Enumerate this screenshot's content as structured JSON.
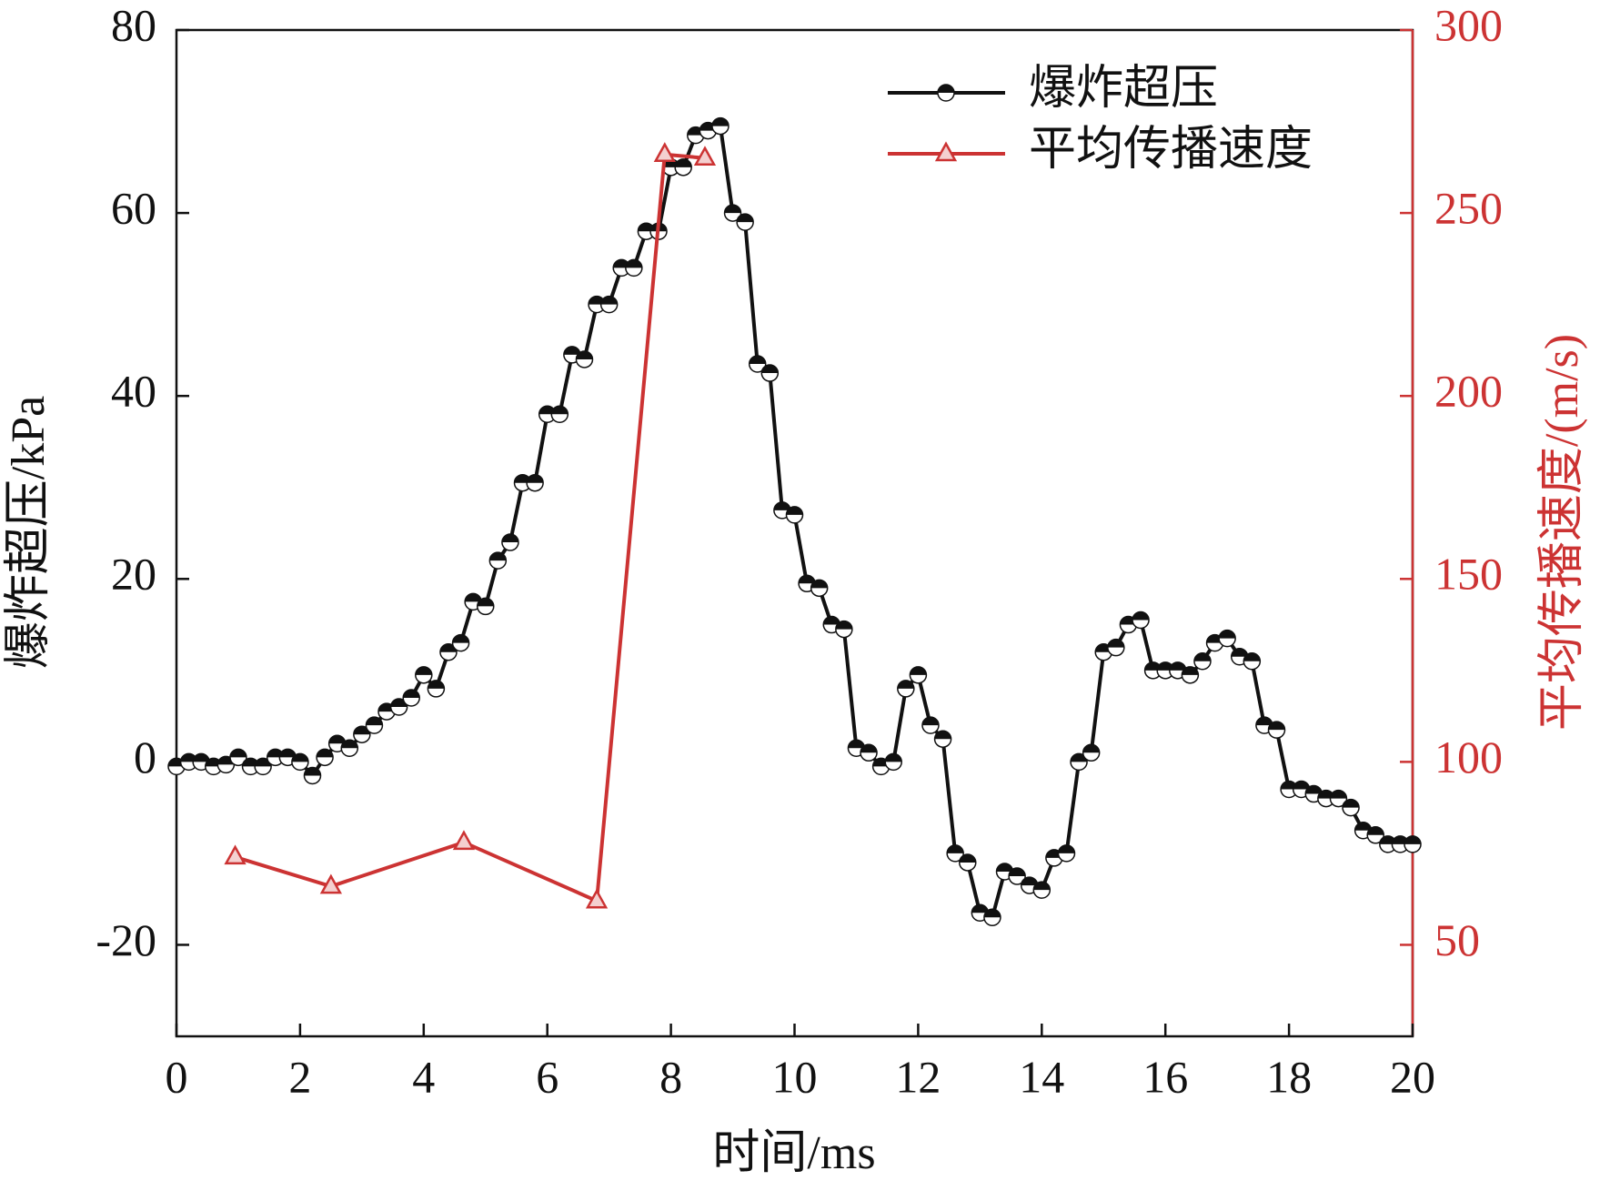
{
  "chart_data": {
    "type": "line",
    "xlabel": "时间/ms",
    "ylabel": "爆炸超压/kPa",
    "y2label": "平均传播速度/(m/s)",
    "xlim": [
      0,
      20
    ],
    "xticks": [
      0,
      2,
      4,
      6,
      8,
      10,
      12,
      14,
      16,
      18,
      20
    ],
    "ylim": [
      -30,
      80
    ],
    "yticks": [
      -20,
      0,
      20,
      40,
      60,
      80
    ],
    "y2lim": [
      25,
      300
    ],
    "y2ticks": [
      50,
      100,
      150,
      200,
      250,
      300
    ],
    "legend": "upper right",
    "series": [
      {
        "name": "爆炸超压",
        "color": "#111111",
        "marker": "circle",
        "x": [
          0,
          0.2,
          0.4,
          0.6,
          0.8,
          1.0,
          1.2,
          1.4,
          1.6,
          1.8,
          2.0,
          2.2,
          2.4,
          2.6,
          2.8,
          3.0,
          3.2,
          3.4,
          3.6,
          3.8,
          4.0,
          4.2,
          4.4,
          4.6,
          4.8,
          5.0,
          5.2,
          5.4,
          5.6,
          5.8,
          6.0,
          6.2,
          6.4,
          6.6,
          6.8,
          7.0,
          7.2,
          7.4,
          7.6,
          7.8,
          8.0,
          8.2,
          8.4,
          8.6,
          8.8,
          9.0,
          9.2,
          9.4,
          9.6,
          9.8,
          10.0,
          10.2,
          10.4,
          10.6,
          10.8,
          11.0,
          11.2,
          11.4,
          11.6,
          11.8,
          12.0,
          12.2,
          12.4,
          12.6,
          12.8,
          13.0,
          13.2,
          13.4,
          13.6,
          13.8,
          14.0,
          14.2,
          14.4,
          14.6,
          14.8,
          15.0,
          15.2,
          15.4,
          15.6,
          15.8,
          16.0,
          16.2,
          16.4,
          16.6,
          16.8,
          17.0,
          17.2,
          17.4,
          17.6,
          17.8,
          18.0,
          18.2,
          18.4,
          18.6,
          18.8,
          19.0,
          19.2,
          19.4,
          19.6,
          19.8,
          20.0
        ],
        "values": [
          -0.5,
          0,
          0,
          -0.5,
          -0.3,
          0.5,
          -0.5,
          -0.5,
          0.5,
          0.5,
          0,
          -1.5,
          0.5,
          2,
          1.5,
          3,
          4,
          5.5,
          6,
          7,
          9.5,
          8,
          12,
          13,
          17.5,
          17,
          22,
          24,
          30.5,
          30.5,
          38,
          38,
          44.5,
          44,
          50,
          50,
          54,
          54,
          58,
          58,
          65,
          65,
          68.5,
          69,
          69.5,
          60,
          59,
          43.5,
          42.5,
          27.5,
          27,
          19.5,
          19,
          15,
          14.5,
          1.5,
          1,
          -0.5,
          0,
          8,
          9.5,
          4,
          2.5,
          -10,
          -11,
          -16.5,
          -17,
          -12,
          -12.5,
          -13.5,
          -14,
          -10.5,
          -10,
          0,
          1,
          12,
          12.5,
          15,
          15.5,
          10,
          10,
          10,
          9.5,
          11,
          13,
          13.5,
          11.5,
          11,
          4,
          3.5,
          -3,
          -3,
          -3.5,
          -4,
          -4,
          -5,
          -7.5,
          -8,
          -9,
          -9,
          -9
        ]
      },
      {
        "name": "平均传播速度",
        "color": "#cc3333",
        "marker": "triangle",
        "axis": "y2",
        "x": [
          0.95,
          2.5,
          4.65,
          6.8,
          7.9,
          8.55
        ],
        "values": [
          74,
          66,
          78,
          62,
          266,
          265
        ]
      }
    ]
  }
}
